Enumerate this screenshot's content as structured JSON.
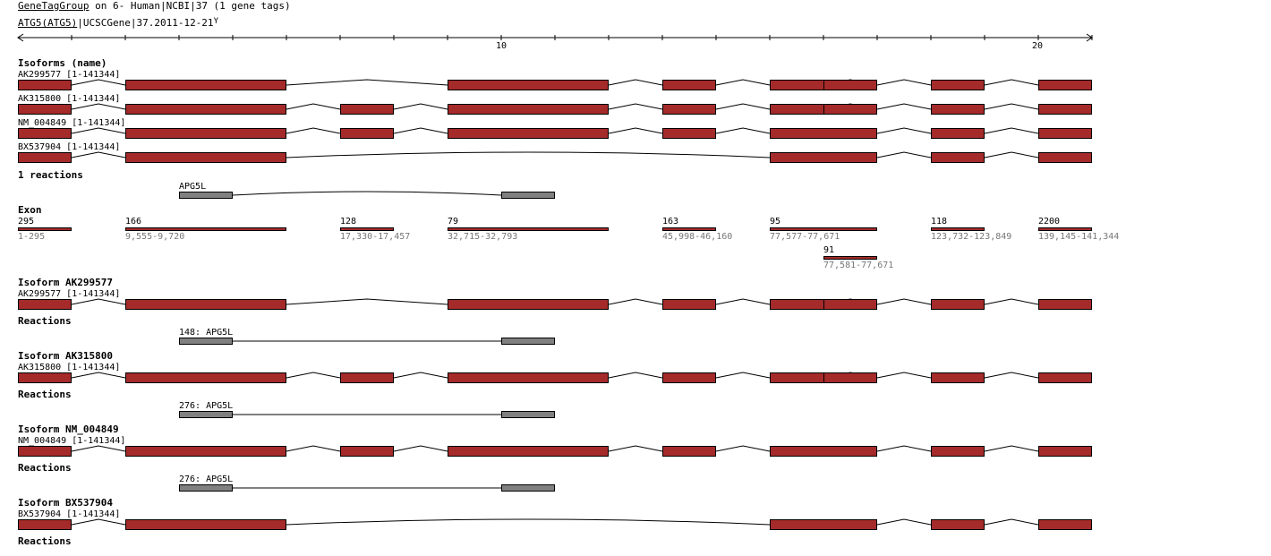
{
  "header": {
    "group_link": "GeneTagGroup",
    "group_rest": " on 6- Human|NCBI|37 (1 gene tags)",
    "gene_link": "ATG5(ATG5)",
    "gene_rest": "|UCSCGene|37.2011-12-21",
    "gene_arrow": "Y"
  },
  "ruler": {
    "ticks": [
      "10",
      "20"
    ]
  },
  "isoforms_overview": {
    "title": "Isoforms (name)",
    "rows": [
      {
        "label": "AK299577 [1-141344]",
        "exons": [
          1,
          2,
          5,
          6,
          7,
          8,
          9,
          10
        ]
      },
      {
        "label": "AK315800 [1-141344]",
        "exons": [
          1,
          2,
          3,
          5,
          6,
          7,
          8,
          9,
          10
        ]
      },
      {
        "label": "NM_004849 [1-141344]",
        "exons": [
          1,
          2,
          3,
          5,
          6,
          7,
          9,
          10
        ]
      },
      {
        "label": "BX537904 [1-141344]",
        "exons": [
          1,
          2,
          7,
          9,
          10
        ]
      }
    ]
  },
  "reactions_overview": {
    "title": "1 reactions",
    "label": "APG5L"
  },
  "exon_section": {
    "title": "Exon",
    "exons": [
      {
        "count": "295",
        "range": "1-295"
      },
      {
        "count": "166",
        "range": "9,555-9,720"
      },
      {
        "count": "128",
        "range": "17,330-17,457"
      },
      {
        "count": "79",
        "range": "32,715-32,793"
      },
      {
        "count": "163",
        "range": "45,998-46,160"
      },
      {
        "count": "95",
        "range": "77,577-77,671"
      },
      {
        "count": "118",
        "range": "123,732-123,849"
      },
      {
        "count": "2200",
        "range": "139,145-141,344"
      },
      {
        "count": "91",
        "range": "77,581-77,671"
      }
    ]
  },
  "isoform_details": [
    {
      "title": "Isoform AK299577",
      "label": "AK299577 [1-141344]",
      "exons": [
        1,
        2,
        5,
        6,
        7,
        8,
        9,
        10
      ],
      "reactions_title": "Reactions",
      "reaction": "148: APG5L"
    },
    {
      "title": "Isoform AK315800",
      "label": "AK315800 [1-141344]",
      "exons": [
        1,
        2,
        3,
        5,
        6,
        7,
        8,
        9,
        10
      ],
      "reactions_title": "Reactions",
      "reaction": "276: APG5L"
    },
    {
      "title": "Isoform NM_004849",
      "label": "NM_004849 [1-141344]",
      "exons": [
        1,
        2,
        3,
        5,
        6,
        7,
        9,
        10
      ],
      "reactions_title": "Reactions",
      "reaction": "276: APG5L"
    },
    {
      "title": "Isoform BX537904",
      "label": "BX537904 [1-141344]",
      "exons": [
        1,
        2,
        7,
        9,
        10
      ],
      "reactions_title": "Reactions"
    }
  ],
  "colors": {
    "exon": "#a52a2a",
    "reaction_block": "#808080",
    "axis": "#000000"
  }
}
